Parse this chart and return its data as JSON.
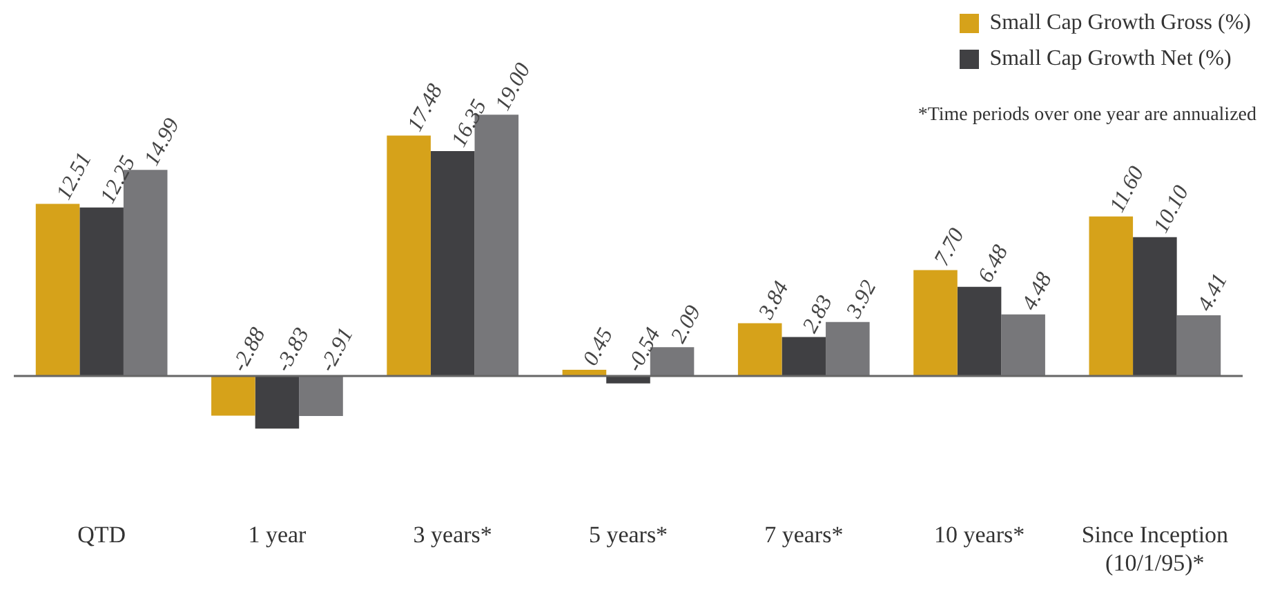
{
  "chart_data": {
    "type": "bar",
    "categories": [
      "QTD",
      "1 year",
      "3 years*",
      "5 years*",
      "7 years*",
      "10 years*",
      "Since Inception (10/1/95)*"
    ],
    "series": [
      {
        "name": "Small Cap Growth Gross (%)",
        "color": "#d6a21a",
        "values": [
          12.51,
          -2.88,
          17.48,
          0.45,
          3.84,
          7.7,
          11.6
        ],
        "value_labels": [
          "12.51",
          "-2.88",
          "17.48",
          "0.45",
          "3.84",
          "7.70",
          "11.60"
        ]
      },
      {
        "name": "Small Cap Growth Net (%)",
        "color": "#404043",
        "values": [
          12.25,
          -3.83,
          16.35,
          -0.54,
          2.83,
          6.48,
          10.1
        ],
        "value_labels": [
          "12.25",
          "-3.83",
          "16.35",
          "-0.54",
          "2.83",
          "6.48",
          "10.10"
        ]
      },
      {
        "color": "#77777a",
        "values": [
          14.99,
          -2.91,
          19.0,
          2.09,
          3.92,
          4.48,
          4.41
        ],
        "value_labels": [
          "14.99",
          "-2.91",
          "19.00",
          "2.09",
          "3.92",
          "4.48",
          "4.41"
        ]
      }
    ],
    "legend": "top right",
    "grid": false,
    "annotations": [
      "*Time periods over one year are annualized"
    ]
  }
}
